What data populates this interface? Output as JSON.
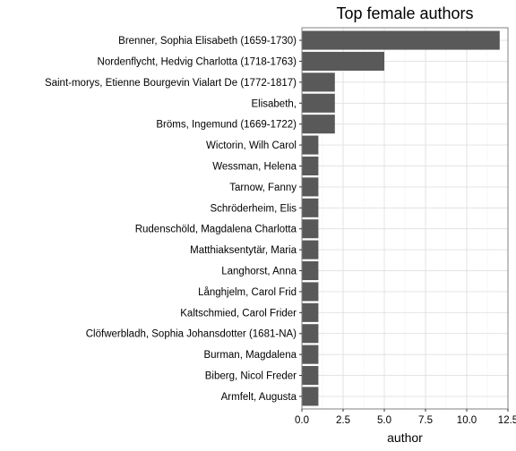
{
  "chart_data": {
    "type": "bar",
    "orientation": "horizontal",
    "title": "Top female authors",
    "xlabel": "author",
    "ylabel": "",
    "categories": [
      "Brenner, Sophia Elisabeth (1659-1730)",
      "Nordenflycht, Hedvig Charlotta (1718-1763)",
      "Saint-morys, Etienne Bourgevin Vialart De (1772-1817)",
      "Elisabeth, ",
      "Bröms, Ingemund (1669-1722)",
      "Wictorin, Wilh Carol",
      "Wessman, Helena",
      "Tarnow, Fanny",
      "Schröderheim, Elis",
      "Rudenschöld, Magdalena Charlotta",
      "Matthiaksentytär, Maria",
      "Langhorst, Anna",
      "Långhjelm, Carol Frid",
      "Kaltschmied, Carol Frider",
      "Clöfwerbladh, Sophia Johansdotter (1681-NA)",
      "Burman, Magdalena",
      "Biberg, Nicol Freder",
      "Armfelt, Augusta"
    ],
    "values": [
      12,
      5,
      2,
      2,
      2,
      1,
      1,
      1,
      1,
      1,
      1,
      1,
      1,
      1,
      1,
      1,
      1,
      1
    ],
    "xlim": [
      0,
      12.5
    ],
    "x_ticks": [
      0,
      2.5,
      5,
      7.5,
      10,
      12.5
    ],
    "x_tick_labels": [
      "0.0",
      "2.5",
      "5.0",
      "7.5",
      "10.0",
      "12.5"
    ],
    "grid": true,
    "colors": {
      "bar": "#595959",
      "background": "#ffffff"
    }
  }
}
